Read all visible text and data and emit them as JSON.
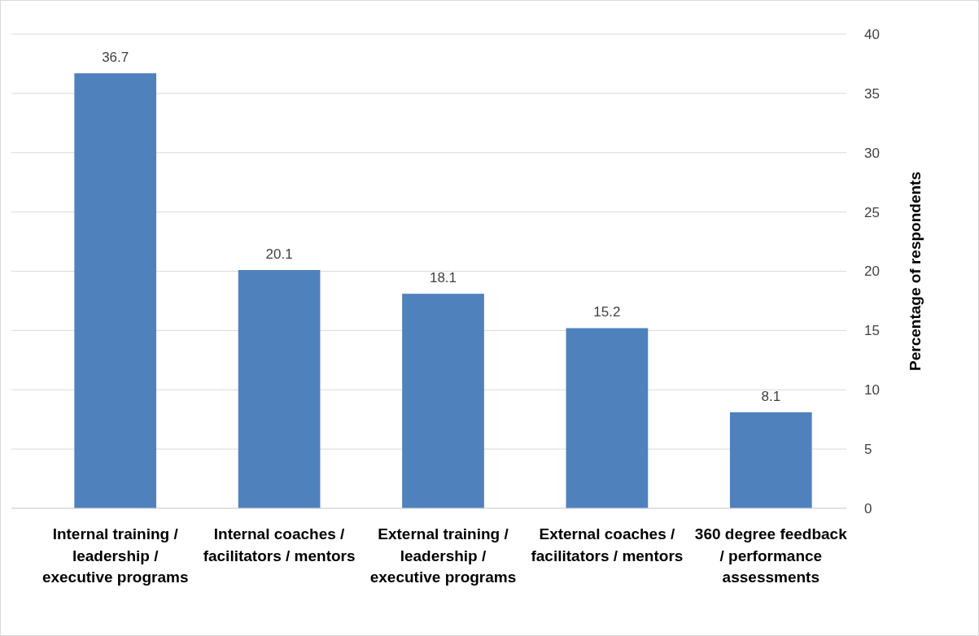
{
  "chart_data": {
    "type": "bar",
    "ylabel": "Percentage of respondents",
    "categories": [
      "Internal training / leadership / executive programs",
      "Internal coaches / facilitators / mentors",
      "External training / leadership / executive programs",
      "External coaches / facilitators / mentors",
      "360 degree feedback / performance assessments"
    ],
    "values": [
      36.7,
      20.1,
      18.1,
      15.2,
      8.1
    ],
    "color": "#4f81bd",
    "ylim": [
      0,
      40
    ],
    "yticks": [
      0,
      5,
      10,
      15,
      20,
      25,
      30,
      35,
      40
    ],
    "grid": "y",
    "data_labels": true
  }
}
